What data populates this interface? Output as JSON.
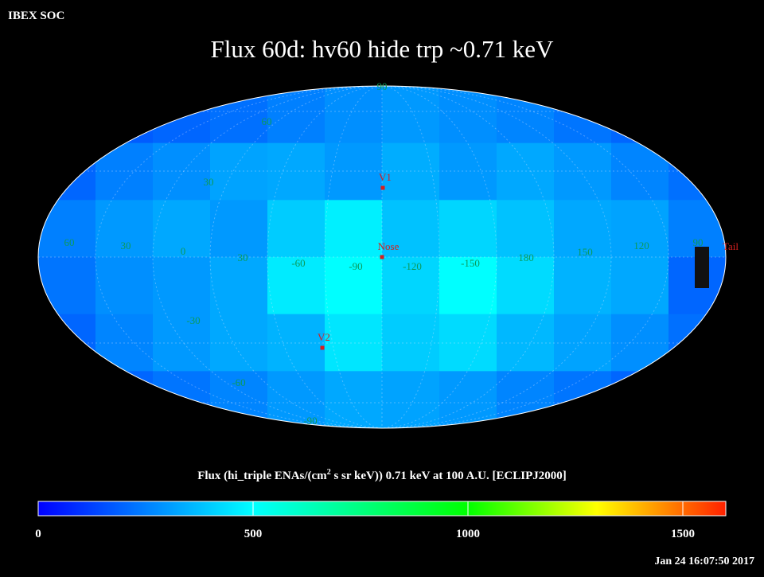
{
  "header": {
    "source": "IBEX SOC",
    "title": "Flux   60d: hv60 hide trp ~0.71 keV"
  },
  "map": {
    "grid_labels": [
      "90",
      "60",
      "30",
      "60",
      "30",
      "0",
      "30",
      "-60",
      "-90",
      "-120",
      "-150",
      "180",
      "150",
      "120",
      "90",
      "-30",
      "-60",
      "-90"
    ],
    "markers": [
      "V1",
      "Nose",
      "V2",
      "Tail"
    ],
    "flux": [
      [
        150,
        180,
        200,
        220,
        250,
        280,
        300,
        280,
        260,
        230,
        200,
        170
      ],
      [
        200,
        250,
        280,
        320,
        330,
        300,
        340,
        300,
        330,
        300,
        260,
        220
      ],
      [
        250,
        300,
        330,
        300,
        400,
        470,
        380,
        420,
        380,
        330,
        320,
        250
      ],
      [
        230,
        280,
        300,
        330,
        460,
        500,
        420,
        500,
        430,
        350,
        330,
        200
      ],
      [
        200,
        260,
        300,
        330,
        350,
        450,
        400,
        430,
        360,
        320,
        280,
        220
      ],
      [
        150,
        200,
        230,
        260,
        300,
        330,
        320,
        300,
        260,
        230,
        200,
        170
      ]
    ]
  },
  "colorbar": {
    "label_before": "Flux (hi_triple ENAs/(cm",
    "label_superscript": "2",
    "label_after": " s sr keV))  0.71 keV at 100 A.U. [ECLIPJ2000]",
    "range": [
      0,
      1600
    ],
    "ticks": [
      0,
      500,
      1000,
      1500
    ],
    "stops": [
      {
        "value": 0,
        "color": "#0000ff"
      },
      {
        "value": 500,
        "color": "#00ffff"
      },
      {
        "value": 1000,
        "color": "#00ff00"
      },
      {
        "value": 1300,
        "color": "#ffff00"
      },
      {
        "value": 1600,
        "color": "#ff2000"
      }
    ]
  },
  "footer": {
    "timestamp": "Jan 24 16:07:50 2017"
  }
}
